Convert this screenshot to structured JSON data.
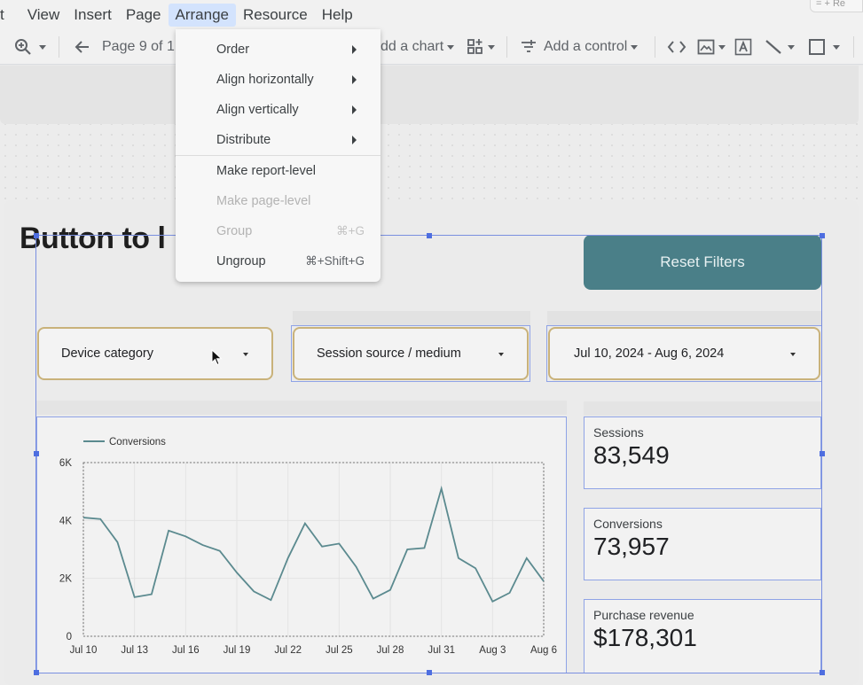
{
  "menubar": {
    "items": [
      {
        "label": "t"
      },
      {
        "label": "View"
      },
      {
        "label": "Insert"
      },
      {
        "label": "Page"
      },
      {
        "label": "Arrange"
      },
      {
        "label": "Resource"
      },
      {
        "label": "Help"
      }
    ],
    "corner_text": "= + Re"
  },
  "toolbar": {
    "page_label": "Page 9 of 1",
    "add_chart": "dd a chart",
    "add_control": "Add a control"
  },
  "arrange_menu": {
    "items": [
      {
        "label": "Order",
        "submenu": true,
        "enabled": true
      },
      {
        "label": "Align horizontally",
        "submenu": true,
        "enabled": true
      },
      {
        "label": "Align vertically",
        "submenu": true,
        "enabled": true
      },
      {
        "label": "Distribute",
        "submenu": true,
        "enabled": true
      },
      {
        "label": "Make report-level",
        "enabled": true
      },
      {
        "label": "Make page-level",
        "enabled": false
      },
      {
        "label": "Group",
        "enabled": false,
        "shortcut": "⌘+G"
      },
      {
        "label": "Ungroup",
        "enabled": true,
        "shortcut": "⌘+Shift+G"
      }
    ]
  },
  "report": {
    "title": "Button to l",
    "reset_button": "Reset Filters",
    "controls": [
      {
        "label": "Device category"
      },
      {
        "label": "Session source / medium"
      },
      {
        "label": "Jul 10, 2024 - Aug 6, 2024"
      }
    ],
    "scorecards": [
      {
        "label": "Sessions",
        "value": "83,549"
      },
      {
        "label": "Conversions",
        "value": "73,957"
      },
      {
        "label": "Purchase revenue",
        "value": "$178,301"
      }
    ]
  },
  "chart_data": {
    "type": "line",
    "legend": "Conversions",
    "legend_position": "top-left",
    "ylim": [
      0,
      6000
    ],
    "yticks": [
      "0",
      "2K",
      "4K",
      "6K"
    ],
    "ytick_values": [
      0,
      2000,
      4000,
      6000
    ],
    "xticks": [
      "Jul 10",
      "Jul 13",
      "Jul 16",
      "Jul 19",
      "Jul 22",
      "Jul 25",
      "Jul 28",
      "Jul 31",
      "Aug 3",
      "Aug 6"
    ],
    "x": [
      "Jul 10",
      "Jul 11",
      "Jul 12",
      "Jul 13",
      "Jul 14",
      "Jul 15",
      "Jul 16",
      "Jul 17",
      "Jul 18",
      "Jul 19",
      "Jul 20",
      "Jul 21",
      "Jul 22",
      "Jul 23",
      "Jul 24",
      "Jul 25",
      "Jul 26",
      "Jul 27",
      "Jul 28",
      "Jul 29",
      "Jul 30",
      "Jul 31",
      "Aug 1",
      "Aug 2",
      "Aug 3",
      "Aug 4",
      "Aug 5",
      "Aug 6"
    ],
    "series": [
      {
        "name": "Conversions",
        "color": "#5b8a8f",
        "values": [
          4100,
          4050,
          3250,
          1350,
          1450,
          3650,
          3450,
          3150,
          2950,
          2200,
          1550,
          1250,
          2700,
          3900,
          3100,
          3200,
          2400,
          1300,
          1600,
          3000,
          3050,
          5100,
          2700,
          2350,
          1200,
          1500,
          2700,
          1900
        ]
      }
    ],
    "grid": true
  }
}
